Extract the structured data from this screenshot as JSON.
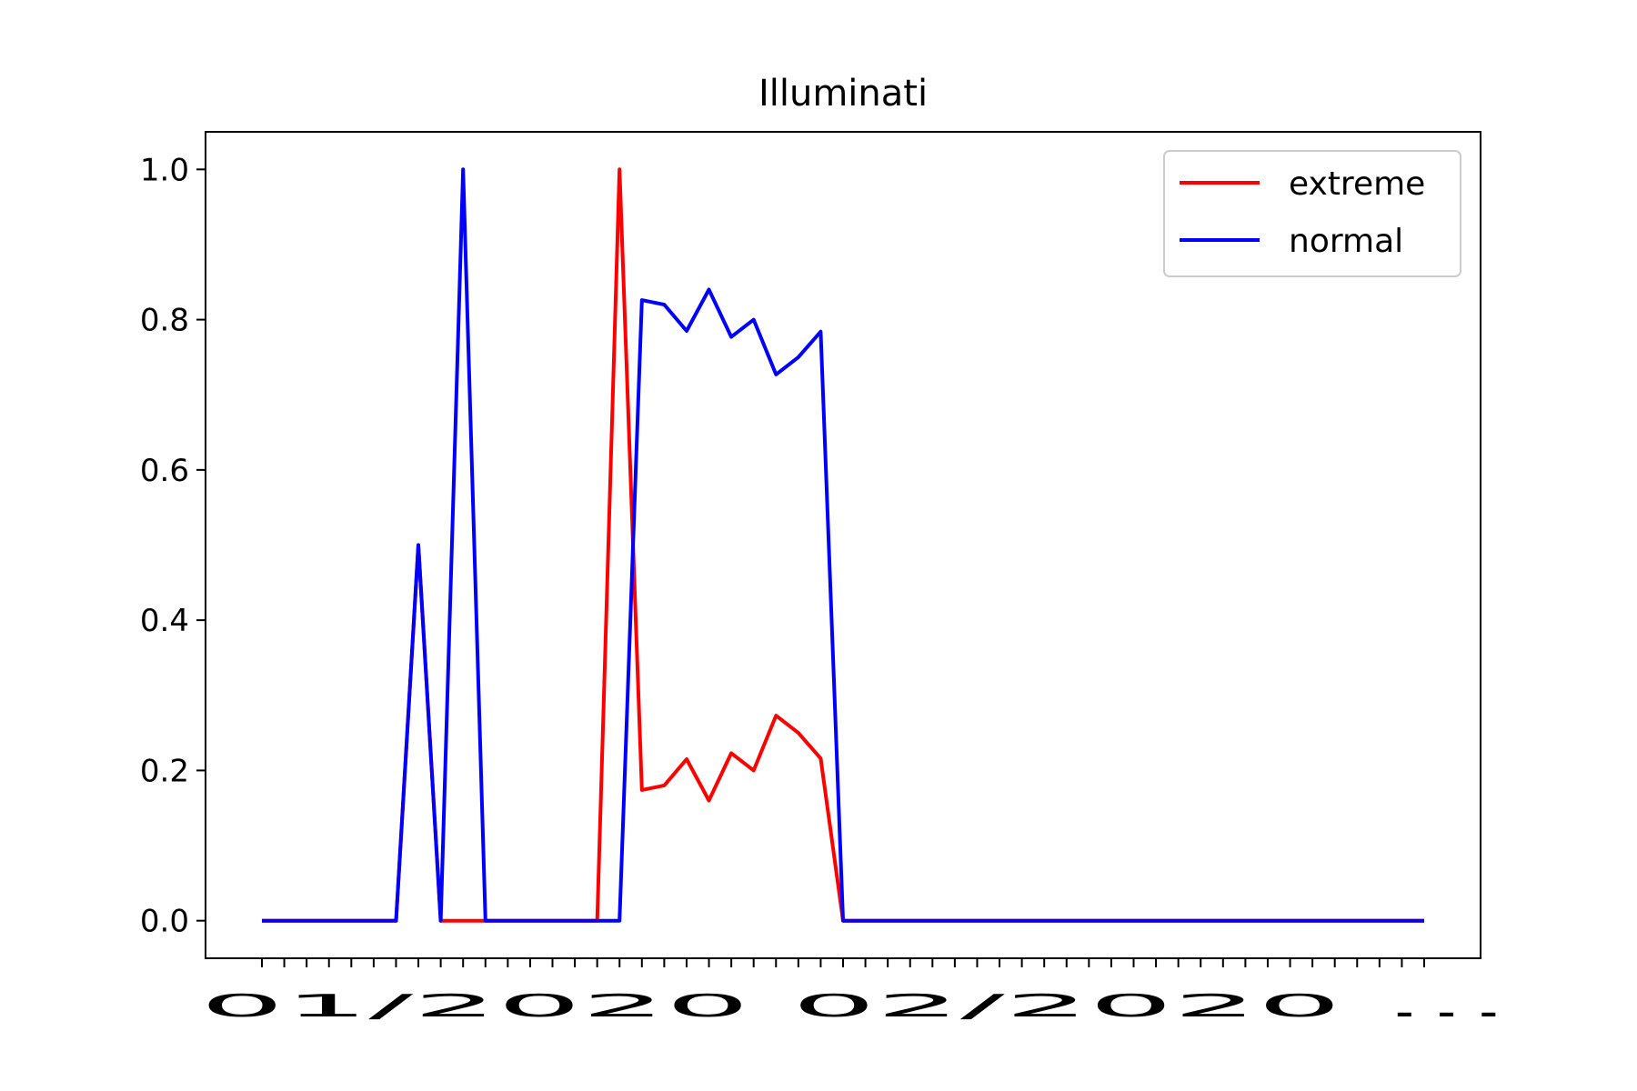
{
  "chart_data": {
    "type": "line",
    "title": "Illuminati",
    "xlabel": "",
    "ylabel": "",
    "x_tick_label_text": "01/2020 02/2020 ...",
    "x_tick_count": 53,
    "ylim": [
      -0.05,
      1.05
    ],
    "yticks": [
      "0.0",
      "0.2",
      "0.4",
      "0.6",
      "0.8",
      "1.0"
    ],
    "ytick_values": [
      0.0,
      0.2,
      0.4,
      0.6,
      0.8,
      1.0
    ],
    "legend_position": "top-right",
    "grid": false,
    "series": [
      {
        "name": "extreme",
        "color": "#ff0000",
        "values": [
          0,
          0,
          0,
          0,
          0,
          0,
          0,
          0.5,
          0,
          0,
          0,
          0,
          0,
          0,
          0,
          0,
          1.0,
          0.174,
          0.18,
          0.215,
          0.16,
          0.223,
          0.2,
          0.273,
          0.25,
          0.216,
          0,
          0,
          0,
          0,
          0,
          0,
          0,
          0,
          0,
          0,
          0,
          0,
          0,
          0,
          0,
          0,
          0,
          0,
          0,
          0,
          0,
          0,
          0,
          0,
          0,
          0,
          0
        ]
      },
      {
        "name": "normal",
        "color": "#0000ff",
        "values": [
          0,
          0,
          0,
          0,
          0,
          0,
          0,
          0.5,
          0,
          1.0,
          0,
          0,
          0,
          0,
          0,
          0,
          0,
          0.826,
          0.82,
          0.785,
          0.84,
          0.777,
          0.8,
          0.727,
          0.75,
          0.784,
          0,
          0,
          0,
          0,
          0,
          0,
          0,
          0,
          0,
          0,
          0,
          0,
          0,
          0,
          0,
          0,
          0,
          0,
          0,
          0,
          0,
          0,
          0,
          0,
          0,
          0,
          0
        ]
      }
    ]
  }
}
